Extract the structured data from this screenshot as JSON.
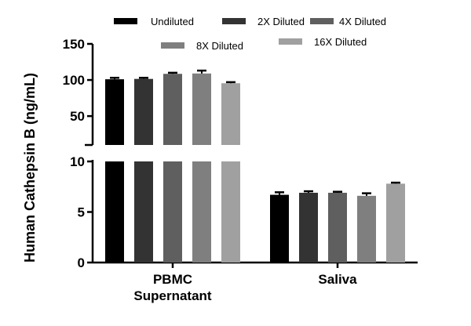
{
  "chart_data": {
    "type": "bar",
    "ylabel": "Human Cathepsin B (ng/mL)",
    "xlabel": "",
    "categories": [
      "PBMC\nSupernatant",
      "Saliva"
    ],
    "category_lines": [
      [
        "PBMC",
        "Supernatant"
      ],
      [
        "Saliva"
      ]
    ],
    "y_axis": {
      "broken": true,
      "lower_range": [
        0,
        10
      ],
      "lower_ticks": [
        "0",
        "5",
        "10"
      ],
      "upper_range": [
        10,
        150
      ],
      "upper_ticks": [
        "50",
        "100",
        "150"
      ]
    },
    "grid": false,
    "legend_position": "top",
    "series": [
      {
        "name": "Undiluted",
        "color": "#000000",
        "values": [
          101,
          6.7
        ],
        "errors": [
          2,
          0.25
        ]
      },
      {
        "name": "2X Diluted",
        "color": "#333333",
        "values": [
          101.5,
          6.9
        ],
        "errors": [
          1.5,
          0.15
        ]
      },
      {
        "name": "4X Diluted",
        "color": "#5f5f5f",
        "values": [
          108.5,
          6.9
        ],
        "errors": [
          1.5,
          0.1
        ]
      },
      {
        "name": "8X Diluted",
        "color": "#7f7f7f",
        "values": [
          109,
          6.6
        ],
        "errors": [
          4,
          0.25
        ]
      },
      {
        "name": "16X Diluted",
        "color": "#a0a0a0",
        "values": [
          95.5,
          7.8
        ],
        "errors": [
          1.5,
          0.1
        ]
      }
    ]
  }
}
